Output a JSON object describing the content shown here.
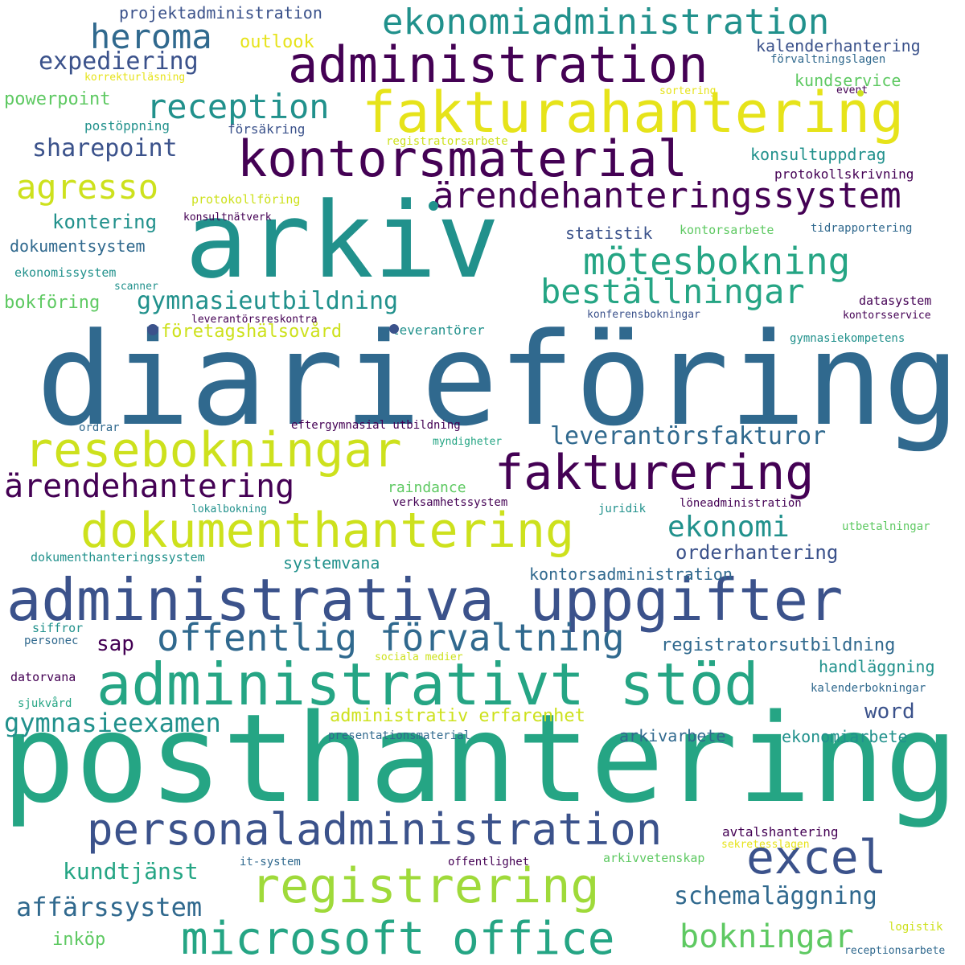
{
  "palette": {
    "c1": "#440154",
    "c2": "#3b528b",
    "c3": "#30698e",
    "c4": "#21918c",
    "c5": "#25a584",
    "c6": "#5ec962",
    "c7": "#9fda3a",
    "c8": "#cde11d",
    "c9": "#e6e31a"
  },
  "words": [
    "diarieföring",
    "posthantering",
    "arkiv",
    "administrativa uppgifter",
    "administrativt stöd",
    "administration",
    "fakturahantering",
    "kontorsmaterial",
    "personaladministration",
    "dokumenthantering",
    "resebokningar",
    "fakturering",
    "registrering",
    "microsoft office",
    "excel",
    "ärendehanteringssystem",
    "mötesbokning",
    "ekonomiadministration",
    "offentlig förvaltning",
    "reception",
    "beställningar",
    "agresso",
    "heroma",
    "ärendehantering",
    "leverantörsfakturor",
    "gymnasieutbildning",
    "ekonomi",
    "bokningar",
    "schemaläggning",
    "kundtjänst",
    "expediering",
    "sharepoint",
    "affärssystem",
    "gymnasieexamen",
    "kontering",
    "administrativ erfarenhet",
    "registratorsutbildning",
    "orderhantering",
    "företagshälsovård",
    "handläggning",
    "powerpoint",
    "kontorsadministration",
    "word",
    "arkivarbete",
    "ekonomiarbete",
    "dokumentsystem",
    "bokföring",
    "projektadministration",
    "kalenderhantering",
    "kundservice",
    "konsultuppdrag",
    "statistik",
    "systemvana",
    "inköp",
    "sap",
    "outlook",
    "raindance",
    "protokollskrivning",
    "avtalshantering",
    "leverantörer",
    "försäkring",
    "postöppning",
    "ekonomissystem",
    "kontorsarbete",
    "datasystem",
    "protokollföring",
    "gymnasiekompetens",
    "dokumenthanteringssystem",
    "eftergymnasial utbildning",
    "arkivvetenskap",
    "presentationsmaterial",
    "juridik",
    "tidrapportering",
    "registratorsarbete",
    "förvaltningslagen",
    "löneadministration",
    "utbetalningar",
    "konsultnätverk",
    "verksamhetssystem",
    "kontorsservice",
    "konferensbokningar",
    "leverantörsreskontra",
    "lokalbokning",
    "siffror",
    "offentlighet",
    "it-system",
    "myndigheter",
    "korrekturläsning",
    "ordrar",
    "sortering",
    "event",
    "scanner",
    "kalenderbokningar",
    "logistik",
    "receptionsarbete",
    "sociala medier",
    "sekretesslagen",
    "personec",
    "datorvana",
    "sjukvård"
  ]
}
